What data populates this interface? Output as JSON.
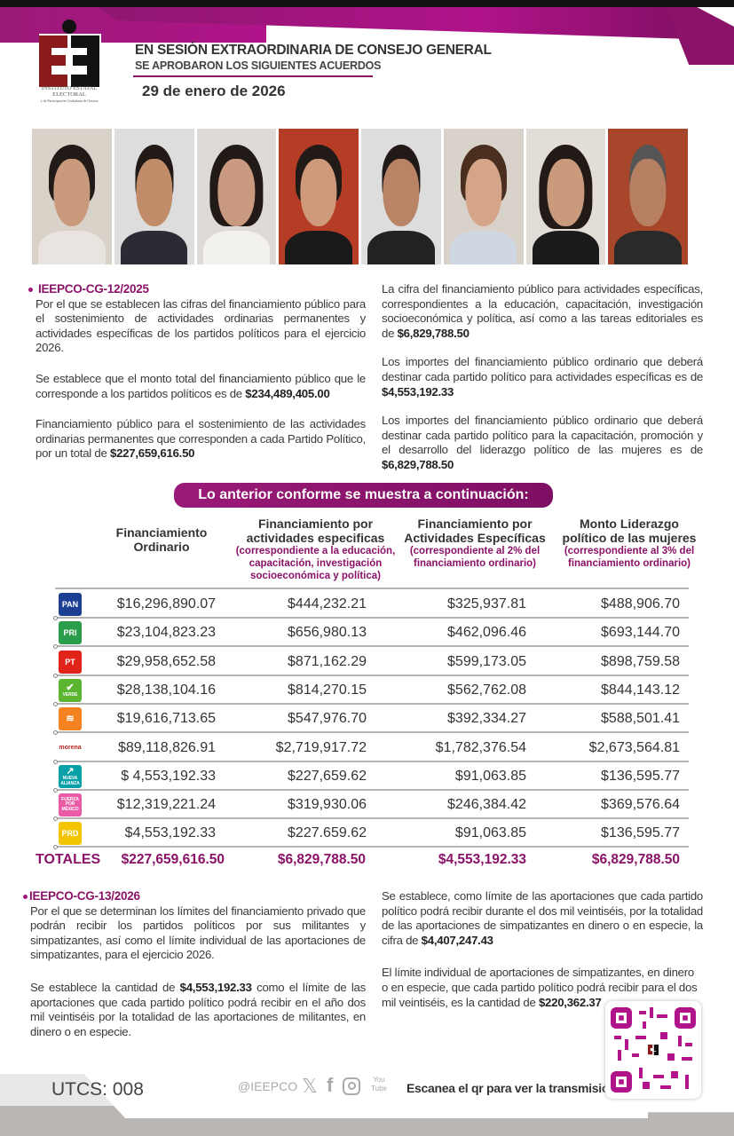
{
  "header": {
    "institution": "INSTITUTO ESTATAL ELECTORAL",
    "institution_sub": "y de Participación Ciudadana de Oaxaca",
    "title": "EN SESIÓN EXTRAORDINARIA DE CONSEJO GENERAL",
    "subtitle": "SE APROBARON LOS SIGUIENTES ACUERDOS",
    "date": "29 de enero de 2026"
  },
  "agreement1": {
    "code": "IEEPCO-CG-12/2025",
    "left": [
      "Por el que se establecen las cifras del financiamiento público para el sostenimiento de actividades ordinarias permanentes y actividades específicas de los partidos políticos para el ejercicio 2026.",
      "Se establece que el monto total del financiamiento público que le corresponde a los partidos políticos es de ",
      "$234,489,405.00",
      "Financiamiento público para el sostenimiento de las actividades ordinarias permanentes que corresponden a cada Partido Político, por un total de ",
      "$227,659,616.50"
    ],
    "right": [
      "La cifra del financiamiento público para actividades específicas, correspondientes a la educación, capacitación, investigación socioeconómica y política, así como a las tareas editoriales es de ",
      "$6,829,788.50",
      "Los importes del financiamiento público ordinario que deberá destinar cada partido político para actividades específicas es de ",
      "$4,553,192.33",
      "Los importes del financiamiento público ordinario que deberá destinar cada partido político para la capacitación, promoción y el desarrollo del liderazgo político de las mujeres es de ",
      "$6,829,788.50"
    ]
  },
  "table": {
    "banner": "Lo anterior conforme se muestra a continuación:",
    "headers": [
      {
        "title": "Financiamiento Ordinario",
        "note": ""
      },
      {
        "title": "Financiamiento por actividades especificas",
        "note": "(correspondiente a la educación, capacitación, investigación socioeconómica y política)"
      },
      {
        "title": "Financiamiento por Actividades Específicas",
        "note": "(correspondiente al 2% del financiamiento ordinario)"
      },
      {
        "title": "Monto Liderazgo político de las mujeres",
        "note": "(correspondiente al 3% del financiamiento ordinario)"
      }
    ],
    "rows": [
      {
        "party": "PAN",
        "color": "#1c3f94",
        "values": [
          "$16,296,890.07",
          "$444,232.21",
          "$325,937.81",
          "$488,906.70"
        ]
      },
      {
        "party": "PRI",
        "color": "#2a9d4a",
        "values": [
          "$23,104,823.23",
          "$656,980.13",
          "$462,096.46",
          "$693,144.70"
        ]
      },
      {
        "party": "PT",
        "color": "#e2231a",
        "values": [
          "$29,958,652.58",
          "$871,162.29",
          "$599,173.05",
          "$898,759.58"
        ]
      },
      {
        "party": "VERDE",
        "color": "#5cb531",
        "values": [
          "$28,138,104.16",
          "$814,270.15",
          "$562,762.08",
          "$844,143.12"
        ]
      },
      {
        "party": "MC",
        "color": "#f58220",
        "values": [
          "$19,616,713.65",
          "$547,976.70",
          "$392,334.27",
          "$588,501.41"
        ]
      },
      {
        "party": "morena",
        "color": "#b5261e",
        "values": [
          "$89,118,826.91",
          "$2,719,917.72",
          "$1,782,376.54",
          "$2,673,564.81"
        ]
      },
      {
        "party": "NUEVA ALIANZA",
        "color": "#0aa0a8",
        "values": [
          "$ 4,553,192.33",
          "$227,659.62",
          "$91,063.85",
          "$136,595.77"
        ]
      },
      {
        "party": "FUERZA POR MÉXICO",
        "color": "#e95ba6",
        "values": [
          "$12,319,221.24",
          "$319,930.06",
          "$246,384.42",
          "$369,576.64"
        ]
      },
      {
        "party": "PRD",
        "color": "#f2c500",
        "values": [
          "$4,553,192.33",
          "$227.659.62",
          "$91,063.85",
          "$136,595.77"
        ]
      }
    ],
    "totals": {
      "label": "TOTALES",
      "values": [
        "$227,659,616.50",
        "$6,829,788.50",
        "$4,553,192.33",
        "$6,829,788.50"
      ]
    }
  },
  "agreement2": {
    "code": "IEEPCO-CG-13/2026",
    "left": [
      "Por el que se determinan los límites del financiamiento privado que podrán recibir los partidos políticos por sus militantes y simpatizantes, así como el límite individual de las aportaciones de simpatizantes, para el ejercicio 2026.",
      "Se establece la cantidad de ",
      "$4,553,192.33",
      " como el límite de las aportaciones que cada partido político podrá recibir en el año dos mil veintiséis por la totalidad de las aportaciones de militantes, en dinero o en especie."
    ],
    "right": [
      "Se establece, como límite de las aportaciones que cada partido político podrá recibir durante el dos mil veintiséis, por la totalidad de las aportaciones de simpatizantes en dinero o en especie, la cifra de ",
      "$4,407,247.43",
      "El límite individual de aportaciones de simpatizantes, en dinero o en especie, que cada partido político podrá recibir para el dos mil veintiséis, es la cantidad de ",
      "$220,362.37"
    ]
  },
  "footer": {
    "code": "UTCS: 008",
    "handle": "@IEEPCO",
    "social_icons": [
      "x-icon",
      "facebook-icon",
      "instagram-icon",
      "youtube-icon"
    ],
    "youtube_label": "You Tube",
    "qr_text": "Escanea el qr para ver la transmisión:"
  },
  "colors": {
    "accent": "#8a1268",
    "logo_red": "#8b1a1a"
  }
}
